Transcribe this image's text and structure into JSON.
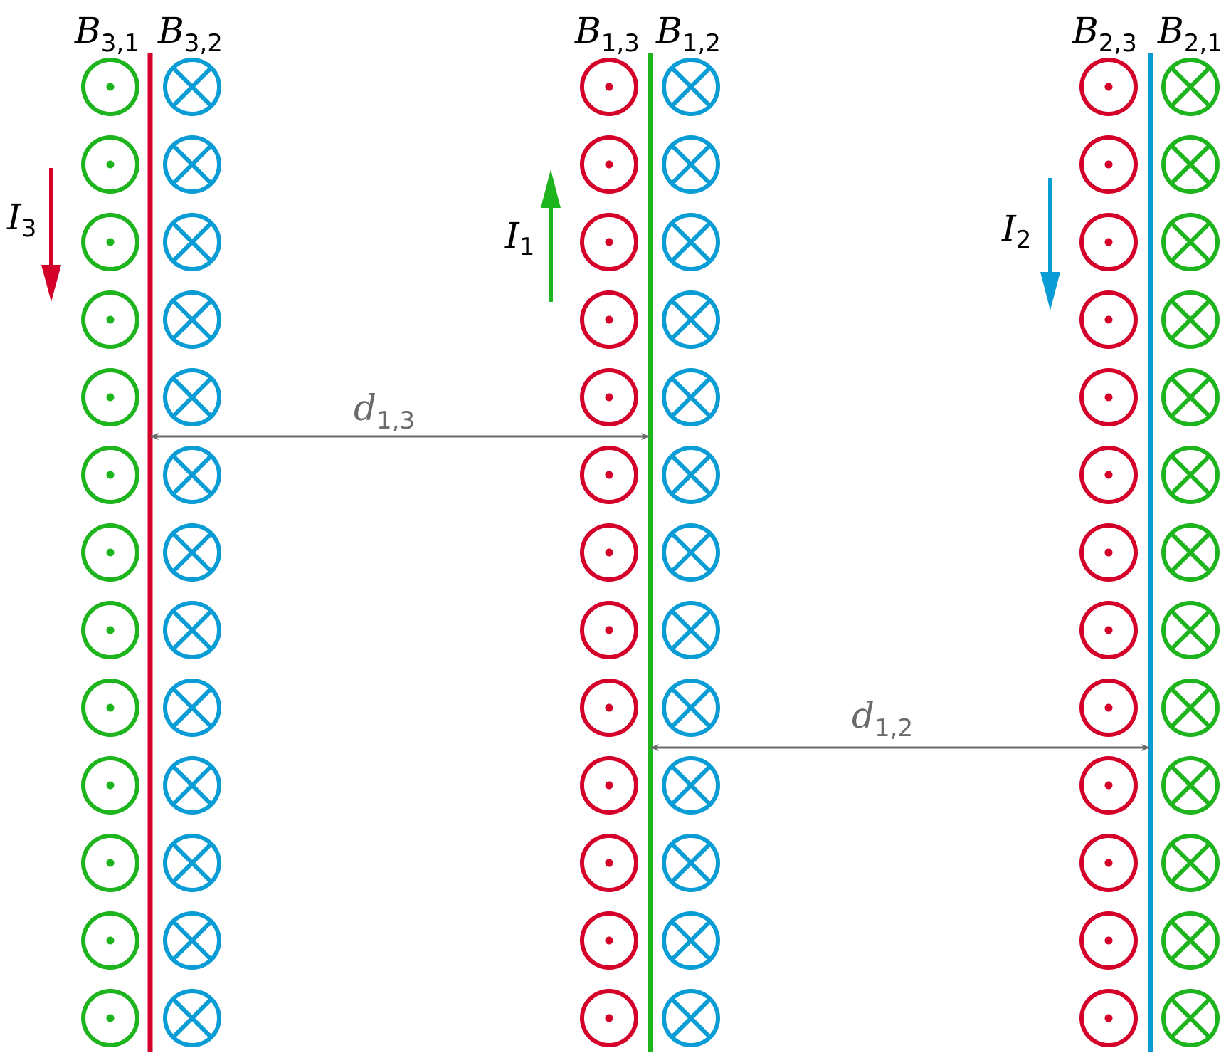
{
  "colors": {
    "red": "#d4002a",
    "green": "#1eb41e",
    "blue": "#0a9cd4",
    "gray": "#6a6a6a",
    "text": "#111111"
  },
  "wires": [
    {
      "id": "wire-3",
      "color": "red",
      "current": {
        "main": "I",
        "sub": "3"
      },
      "direction": "down",
      "left_field": {
        "main": "B",
        "sub": "3,1",
        "symbol": "dot",
        "color": "green"
      },
      "right_field": {
        "main": "B",
        "sub": "3,2",
        "symbol": "cross",
        "color": "blue"
      }
    },
    {
      "id": "wire-1",
      "color": "green",
      "current": {
        "main": "I",
        "sub": "1"
      },
      "direction": "up",
      "left_field": {
        "main": "B",
        "sub": "1,3",
        "symbol": "dot",
        "color": "red"
      },
      "right_field": {
        "main": "B",
        "sub": "1,2",
        "symbol": "cross",
        "color": "blue"
      }
    },
    {
      "id": "wire-2",
      "color": "blue",
      "current": {
        "main": "I",
        "sub": "2"
      },
      "direction": "down",
      "left_field": {
        "main": "B",
        "sub": "2,3",
        "symbol": "dot",
        "color": "red"
      },
      "right_field": {
        "main": "B",
        "sub": "2,1",
        "symbol": "cross",
        "color": "green"
      }
    }
  ],
  "symbols_per_column": 13,
  "distances": [
    {
      "id": "d13",
      "main": "d",
      "sub": "1,3",
      "from": "wire-3",
      "to": "wire-1"
    },
    {
      "id": "d12",
      "main": "d",
      "sub": "1,2",
      "from": "wire-1",
      "to": "wire-2"
    }
  ]
}
